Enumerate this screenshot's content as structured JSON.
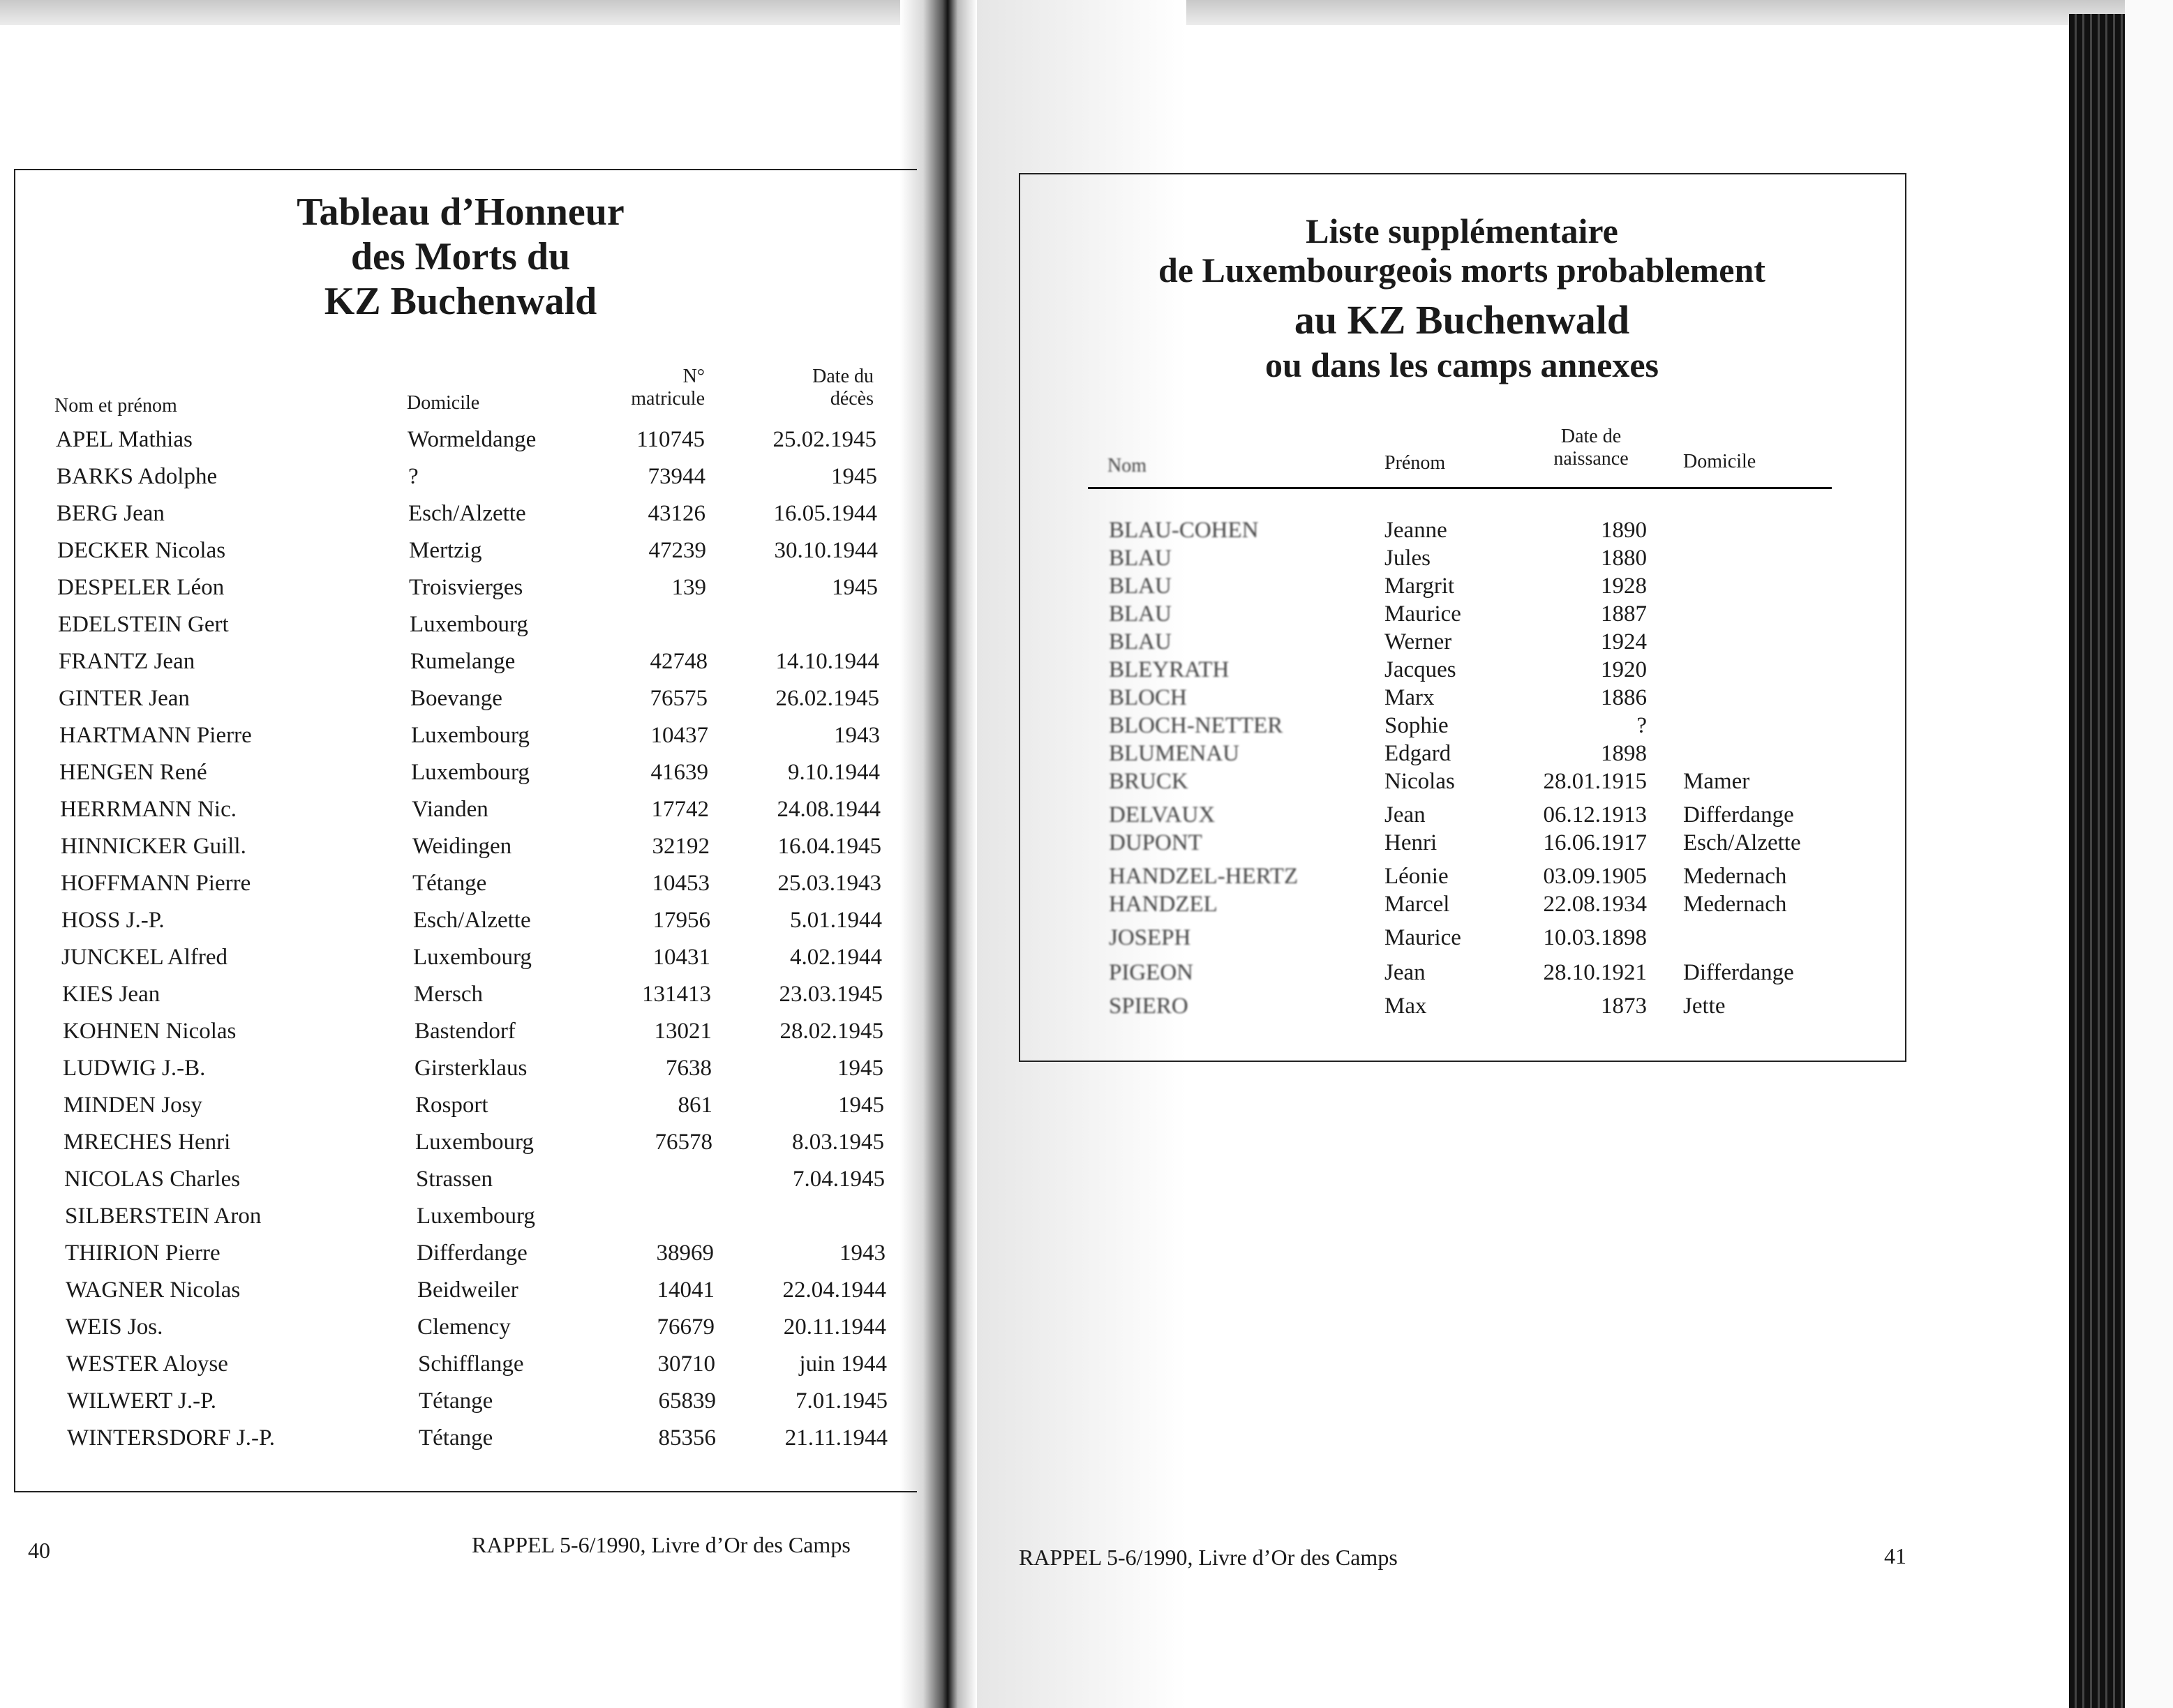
{
  "left_page": {
    "title_lines": [
      "Tableau d’Honneur",
      "des Morts du",
      "KZ Buchenwald"
    ],
    "headers": {
      "name": "Nom et prénom",
      "domicile": "Domicile",
      "matricule_1": "N°",
      "matricule_2": "matricule",
      "date_1": "Date du",
      "date_2": "décès"
    },
    "rows": [
      [
        "APEL Mathias",
        "Wormeldange",
        "110745",
        "25.02.1945"
      ],
      [
        "BARKS Adolphe",
        "?",
        "73944",
        "1945"
      ],
      [
        "BERG Jean",
        "Esch/Alzette",
        "43126",
        "16.05.1944"
      ],
      [
        "DECKER Nicolas",
        "Mertzig",
        "47239",
        "30.10.1944"
      ],
      [
        "DESPELER Léon",
        "Troisvierges",
        "139",
        "1945"
      ],
      [
        "EDELSTEIN Gert",
        "Luxembourg",
        "",
        ""
      ],
      [
        "FRANTZ Jean",
        "Rumelange",
        "42748",
        "14.10.1944"
      ],
      [
        "GINTER Jean",
        "Boevange",
        "76575",
        "26.02.1945"
      ],
      [
        "HARTMANN Pierre",
        "Luxembourg",
        "10437",
        "1943"
      ],
      [
        "HENGEN René",
        "Luxembourg",
        "41639",
        "9.10.1944"
      ],
      [
        "HERRMANN Nic.",
        "Vianden",
        "17742",
        "24.08.1944"
      ],
      [
        "HINNICKER Guill.",
        "Weidingen",
        "32192",
        "16.04.1945"
      ],
      [
        "HOFFMANN Pierre",
        "Tétange",
        "10453",
        "25.03.1943"
      ],
      [
        "HOSS J.-P.",
        "Esch/Alzette",
        "17956",
        "5.01.1944"
      ],
      [
        "JUNCKEL Alfred",
        "Luxembourg",
        "10431",
        "4.02.1944"
      ],
      [
        "KIES Jean",
        "Mersch",
        "131413",
        "23.03.1945"
      ],
      [
        "KOHNEN Nicolas",
        "Bastendorf",
        "13021",
        "28.02.1945"
      ],
      [
        "LUDWIG J.-B.",
        "Girsterklaus",
        "7638",
        "1945"
      ],
      [
        "MINDEN Josy",
        "Rosport",
        "861",
        "1945"
      ],
      [
        "MRECHES Henri",
        "Luxembourg",
        "76578",
        "8.03.1945"
      ],
      [
        "NICOLAS Charles",
        "Strassen",
        "",
        "7.04.1945"
      ],
      [
        "SILBERSTEIN Aron",
        "Luxembourg",
        "",
        ""
      ],
      [
        "THIRION Pierre",
        "Differdange",
        "38969",
        "1943"
      ],
      [
        "WAGNER Nicolas",
        "Beidweiler",
        "14041",
        "22.04.1944"
      ],
      [
        "WEIS Jos.",
        "Clemency",
        "76679",
        "20.11.1944"
      ],
      [
        "WESTER Aloyse",
        "Schifflange",
        "30710",
        "juin 1944"
      ],
      [
        "WILWERT J.-P.",
        "Tétange",
        "65839",
        "7.01.1945"
      ],
      [
        "WINTERSDORF J.-P.",
        "Tétange",
        "85356",
        "21.11.1944"
      ]
    ],
    "page_number": "40",
    "footer": "RAPPEL 5-6/1990, Livre d’Or des Camps"
  },
  "right_page": {
    "title_lines": [
      "Liste supplémentaire",
      "de Luxembourgeois morts probablement",
      "au KZ Buchenwald",
      "ou dans les camps annexes"
    ],
    "headers": {
      "nom": "Nom",
      "prenom": "Prénom",
      "date_1": "Date de",
      "date_2": "naissance",
      "domicile": "Domicile"
    },
    "rows": [
      [
        "BLAU-COHEN",
        "Jeanne",
        "1890",
        ""
      ],
      [
        "BLAU",
        "Jules",
        "1880",
        ""
      ],
      [
        "BLAU",
        "Margrit",
        "1928",
        ""
      ],
      [
        "BLAU",
        "Maurice",
        "1887",
        ""
      ],
      [
        "BLAU",
        "Werner",
        "1924",
        ""
      ],
      [
        "BLEYRATH",
        "Jacques",
        "1920",
        ""
      ],
      [
        "BLOCH",
        "Marx",
        "1886",
        ""
      ],
      [
        "BLOCH-NETTER",
        "Sophie",
        "?",
        ""
      ],
      [
        "BLUMENAU",
        "Edgard",
        "1898",
        ""
      ],
      [
        "BRUCK",
        "Nicolas",
        "28.01.1915",
        "Mamer"
      ],
      [
        "DELVAUX",
        "Jean",
        "06.12.1913",
        "Differdange"
      ],
      [
        "DUPONT",
        "Henri",
        "16.06.1917",
        "Esch/Alzette"
      ],
      [
        "HANDZEL-HERTZ",
        "Léonie",
        "03.09.1905",
        "Medernach"
      ],
      [
        "HANDZEL",
        "Marcel",
        "22.08.1934",
        "Medernach"
      ],
      [
        "JOSEPH",
        "Maurice",
        "10.03.1898",
        ""
      ],
      [
        "PIGEON",
        "Jean",
        "28.10.1921",
        "Differdange"
      ],
      [
        "SPIERO",
        "Max",
        "1873",
        "Jette"
      ]
    ],
    "footer": "RAPPEL 5-6/1990, Livre d’Or des Camps",
    "page_number": "41"
  }
}
